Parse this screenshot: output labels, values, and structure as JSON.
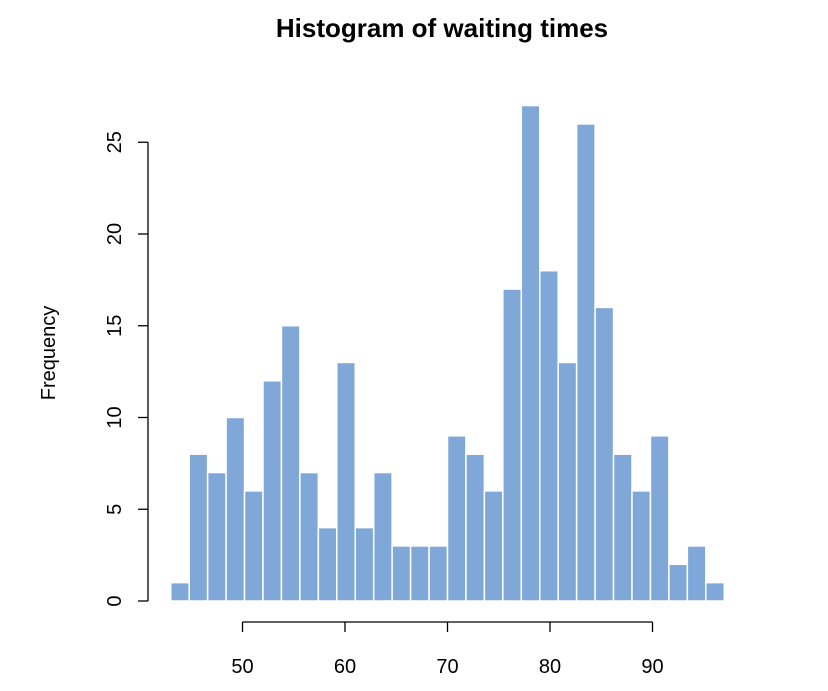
{
  "chart_data": {
    "type": "bar",
    "title": "Histogram of waiting times",
    "xlabel": "",
    "ylabel": "Frequency",
    "bar_color": "#7fa7d7",
    "bin_width": 1.8,
    "bins": [
      {
        "x0": 43.0,
        "x1": 44.8,
        "value": 1
      },
      {
        "x0": 44.8,
        "x1": 46.6,
        "value": 8
      },
      {
        "x0": 46.6,
        "x1": 48.4,
        "value": 7
      },
      {
        "x0": 48.4,
        "x1": 50.2,
        "value": 10
      },
      {
        "x0": 50.2,
        "x1": 52.0,
        "value": 6
      },
      {
        "x0": 52.0,
        "x1": 53.8,
        "value": 12
      },
      {
        "x0": 53.8,
        "x1": 55.6,
        "value": 15
      },
      {
        "x0": 55.6,
        "x1": 57.4,
        "value": 7
      },
      {
        "x0": 57.4,
        "x1": 59.2,
        "value": 4
      },
      {
        "x0": 59.2,
        "x1": 61.0,
        "value": 13
      },
      {
        "x0": 61.0,
        "x1": 62.8,
        "value": 4
      },
      {
        "x0": 62.8,
        "x1": 64.6,
        "value": 7
      },
      {
        "x0": 64.6,
        "x1": 66.4,
        "value": 3
      },
      {
        "x0": 66.4,
        "x1": 68.2,
        "value": 3
      },
      {
        "x0": 68.2,
        "x1": 70.0,
        "value": 3
      },
      {
        "x0": 70.0,
        "x1": 71.8,
        "value": 9
      },
      {
        "x0": 71.8,
        "x1": 73.6,
        "value": 8
      },
      {
        "x0": 73.6,
        "x1": 75.4,
        "value": 6
      },
      {
        "x0": 75.4,
        "x1": 77.2,
        "value": 17
      },
      {
        "x0": 77.2,
        "x1": 79.0,
        "value": 27
      },
      {
        "x0": 79.0,
        "x1": 80.8,
        "value": 18
      },
      {
        "x0": 80.8,
        "x1": 82.6,
        "value": 13
      },
      {
        "x0": 82.6,
        "x1": 84.4,
        "value": 26
      },
      {
        "x0": 84.4,
        "x1": 86.2,
        "value": 16
      },
      {
        "x0": 86.2,
        "x1": 88.0,
        "value": 8
      },
      {
        "x0": 88.0,
        "x1": 89.8,
        "value": 6
      },
      {
        "x0": 89.8,
        "x1": 91.6,
        "value": 9
      },
      {
        "x0": 91.6,
        "x1": 93.4,
        "value": 2
      },
      {
        "x0": 93.4,
        "x1": 95.2,
        "value": 3
      },
      {
        "x0": 95.2,
        "x1": 97.0,
        "value": 1
      }
    ],
    "x_ticks": [
      50,
      60,
      70,
      80,
      90
    ],
    "x_tick_labels": [
      "50",
      "60",
      "70",
      "80",
      "90"
    ],
    "y_ticks": [
      0,
      5,
      10,
      15,
      20,
      25
    ],
    "y_tick_labels": [
      "0",
      "5",
      "10",
      "15",
      "20",
      "25"
    ],
    "xlim": [
      43,
      97
    ],
    "ylim": [
      0,
      27
    ],
    "grid": false,
    "legend": "none"
  }
}
